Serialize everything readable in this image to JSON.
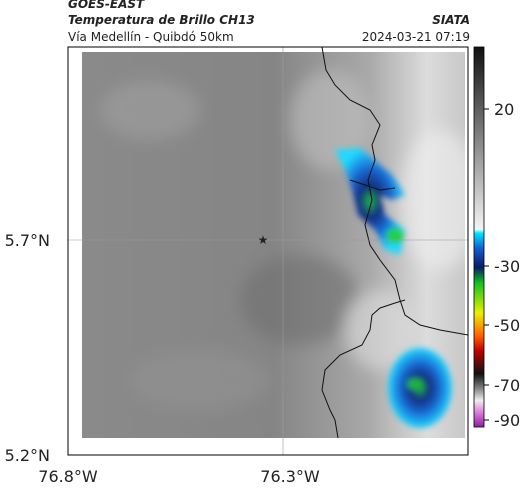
{
  "header": {
    "product": "GOES-EAST",
    "title": "Temperatura de Brillo CH13",
    "source": "SIATA",
    "subtitle": "Vía Medellín - Quibdó 50km",
    "timestamp": "2024-03-21 07:19"
  },
  "map": {
    "lat_ticks": [
      "5.7°N",
      "5.2°N"
    ],
    "lon_ticks": [
      "76.8°W",
      "76.3°W"
    ]
  },
  "colorbar": {
    "ticks": [
      20,
      -30,
      -50,
      -70,
      -90
    ]
  }
}
